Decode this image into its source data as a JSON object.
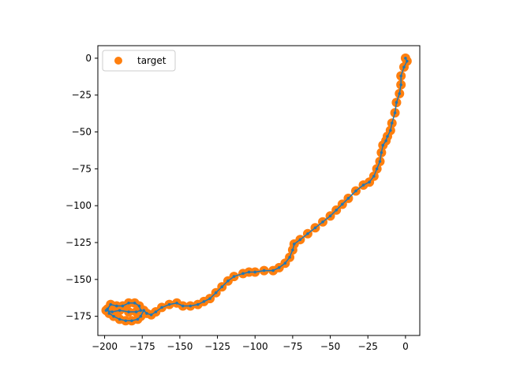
{
  "chart_data": {
    "type": "scatter",
    "title": "",
    "xlabel": "",
    "ylabel": "",
    "xlim": [
      -204.5,
      9.5
    ],
    "ylim": [
      -188,
      8.5
    ],
    "xticks": [
      -200,
      -175,
      -150,
      -125,
      -100,
      -75,
      -50,
      -25,
      0
    ],
    "yticks": [
      0,
      -25,
      -50,
      -75,
      -100,
      -125,
      -150,
      -175
    ],
    "grid": false,
    "legend": {
      "placement": "top-left",
      "entries": [
        "target"
      ]
    },
    "series": [
      {
        "name": "target",
        "style": "scatter",
        "color": "#ff7f0e",
        "points": [
          [
            0,
            0
          ],
          [
            1,
            -2
          ],
          [
            -1,
            -6
          ],
          [
            -3,
            -12
          ],
          [
            -3,
            -18
          ],
          [
            -4,
            -24
          ],
          [
            -6,
            -30
          ],
          [
            -7,
            -37
          ],
          [
            -9,
            -44
          ],
          [
            -10,
            -49
          ],
          [
            -12,
            -53
          ],
          [
            -13,
            -56
          ],
          [
            -15,
            -59
          ],
          [
            -16,
            -64
          ],
          [
            -17,
            -70
          ],
          [
            -19,
            -75
          ],
          [
            -21,
            -80
          ],
          [
            -24,
            -84
          ],
          [
            -28,
            -86
          ],
          [
            -33,
            -90
          ],
          [
            -38,
            -95
          ],
          [
            -42,
            -99
          ],
          [
            -46,
            -103
          ],
          [
            -50,
            -107
          ],
          [
            -55,
            -111
          ],
          [
            -60,
            -115
          ],
          [
            -65,
            -119
          ],
          [
            -70,
            -123
          ],
          [
            -74,
            -126
          ],
          [
            -75,
            -130
          ],
          [
            -77,
            -135
          ],
          [
            -80,
            -139
          ],
          [
            -84,
            -142
          ],
          [
            -88,
            -144
          ],
          [
            -94,
            -144
          ],
          [
            -100,
            -145
          ],
          [
            -104,
            -145
          ],
          [
            -108,
            -146
          ],
          [
            -114,
            -148
          ],
          [
            -118,
            -151
          ],
          [
            -122,
            -155
          ],
          [
            -126,
            -159
          ],
          [
            -130,
            -163
          ],
          [
            -134,
            -165
          ],
          [
            -138,
            -167
          ],
          [
            -143,
            -168
          ],
          [
            -148,
            -168
          ],
          [
            -152,
            -166
          ],
          [
            -157,
            -167
          ],
          [
            -162,
            -169
          ],
          [
            -166,
            -172
          ],
          [
            -169,
            -174
          ],
          [
            -172,
            -173
          ],
          [
            -174,
            -171
          ],
          [
            -176,
            -175
          ],
          [
            -178,
            -177
          ],
          [
            -182,
            -178
          ],
          [
            -186,
            -178
          ],
          [
            -190,
            -177
          ],
          [
            -194,
            -175
          ],
          [
            -197,
            -173
          ],
          [
            -198,
            -170
          ],
          [
            -196,
            -167
          ],
          [
            -192,
            -168
          ],
          [
            -188,
            -168
          ],
          [
            -184,
            -166
          ],
          [
            -180,
            -166
          ],
          [
            -177,
            -168
          ],
          [
            -176,
            -171
          ],
          [
            -179,
            -172
          ],
          [
            -184,
            -172
          ],
          [
            -190,
            -171
          ],
          [
            -195,
            -172
          ],
          [
            -199,
            -171
          ]
        ]
      },
      {
        "name": "",
        "style": "line-with-points",
        "color": "#1f77b4",
        "points": [
          [
            0,
            0
          ],
          [
            1,
            -2
          ],
          [
            -1,
            -6
          ],
          [
            -3,
            -12
          ],
          [
            -3,
            -18
          ],
          [
            -4,
            -24
          ],
          [
            -6,
            -30
          ],
          [
            -7,
            -37
          ],
          [
            -9,
            -44
          ],
          [
            -10,
            -49
          ],
          [
            -12,
            -53
          ],
          [
            -13,
            -56
          ],
          [
            -15,
            -59
          ],
          [
            -16,
            -64
          ],
          [
            -17,
            -70
          ],
          [
            -19,
            -75
          ],
          [
            -21,
            -80
          ],
          [
            -24,
            -84
          ],
          [
            -28,
            -86
          ],
          [
            -33,
            -90
          ],
          [
            -38,
            -95
          ],
          [
            -42,
            -99
          ],
          [
            -46,
            -103
          ],
          [
            -50,
            -107
          ],
          [
            -55,
            -111
          ],
          [
            -60,
            -115
          ],
          [
            -65,
            -119
          ],
          [
            -70,
            -123
          ],
          [
            -74,
            -126
          ],
          [
            -75,
            -130
          ],
          [
            -77,
            -135
          ],
          [
            -80,
            -139
          ],
          [
            -84,
            -142
          ],
          [
            -88,
            -144
          ],
          [
            -94,
            -144
          ],
          [
            -100,
            -145
          ],
          [
            -104,
            -145
          ],
          [
            -108,
            -146
          ],
          [
            -114,
            -148
          ],
          [
            -118,
            -151
          ],
          [
            -122,
            -155
          ],
          [
            -126,
            -159
          ],
          [
            -130,
            -163
          ],
          [
            -134,
            -165
          ],
          [
            -138,
            -167
          ],
          [
            -143,
            -168
          ],
          [
            -148,
            -168
          ],
          [
            -152,
            -166
          ],
          [
            -157,
            -167
          ],
          [
            -162,
            -169
          ],
          [
            -166,
            -172
          ],
          [
            -169,
            -174
          ],
          [
            -172,
            -173
          ],
          [
            -174,
            -171
          ],
          [
            -176,
            -175
          ],
          [
            -178,
            -177
          ],
          [
            -182,
            -178
          ],
          [
            -186,
            -178
          ],
          [
            -190,
            -177
          ],
          [
            -194,
            -175
          ],
          [
            -197,
            -173
          ],
          [
            -198,
            -170
          ],
          [
            -196,
            -167
          ],
          [
            -192,
            -168
          ],
          [
            -188,
            -168
          ],
          [
            -184,
            -166
          ],
          [
            -180,
            -166
          ],
          [
            -177,
            -168
          ],
          [
            -176,
            -171
          ],
          [
            -179,
            -172
          ],
          [
            -184,
            -172
          ],
          [
            -190,
            -171
          ],
          [
            -195,
            -172
          ],
          [
            -199,
            -171
          ]
        ]
      }
    ]
  }
}
